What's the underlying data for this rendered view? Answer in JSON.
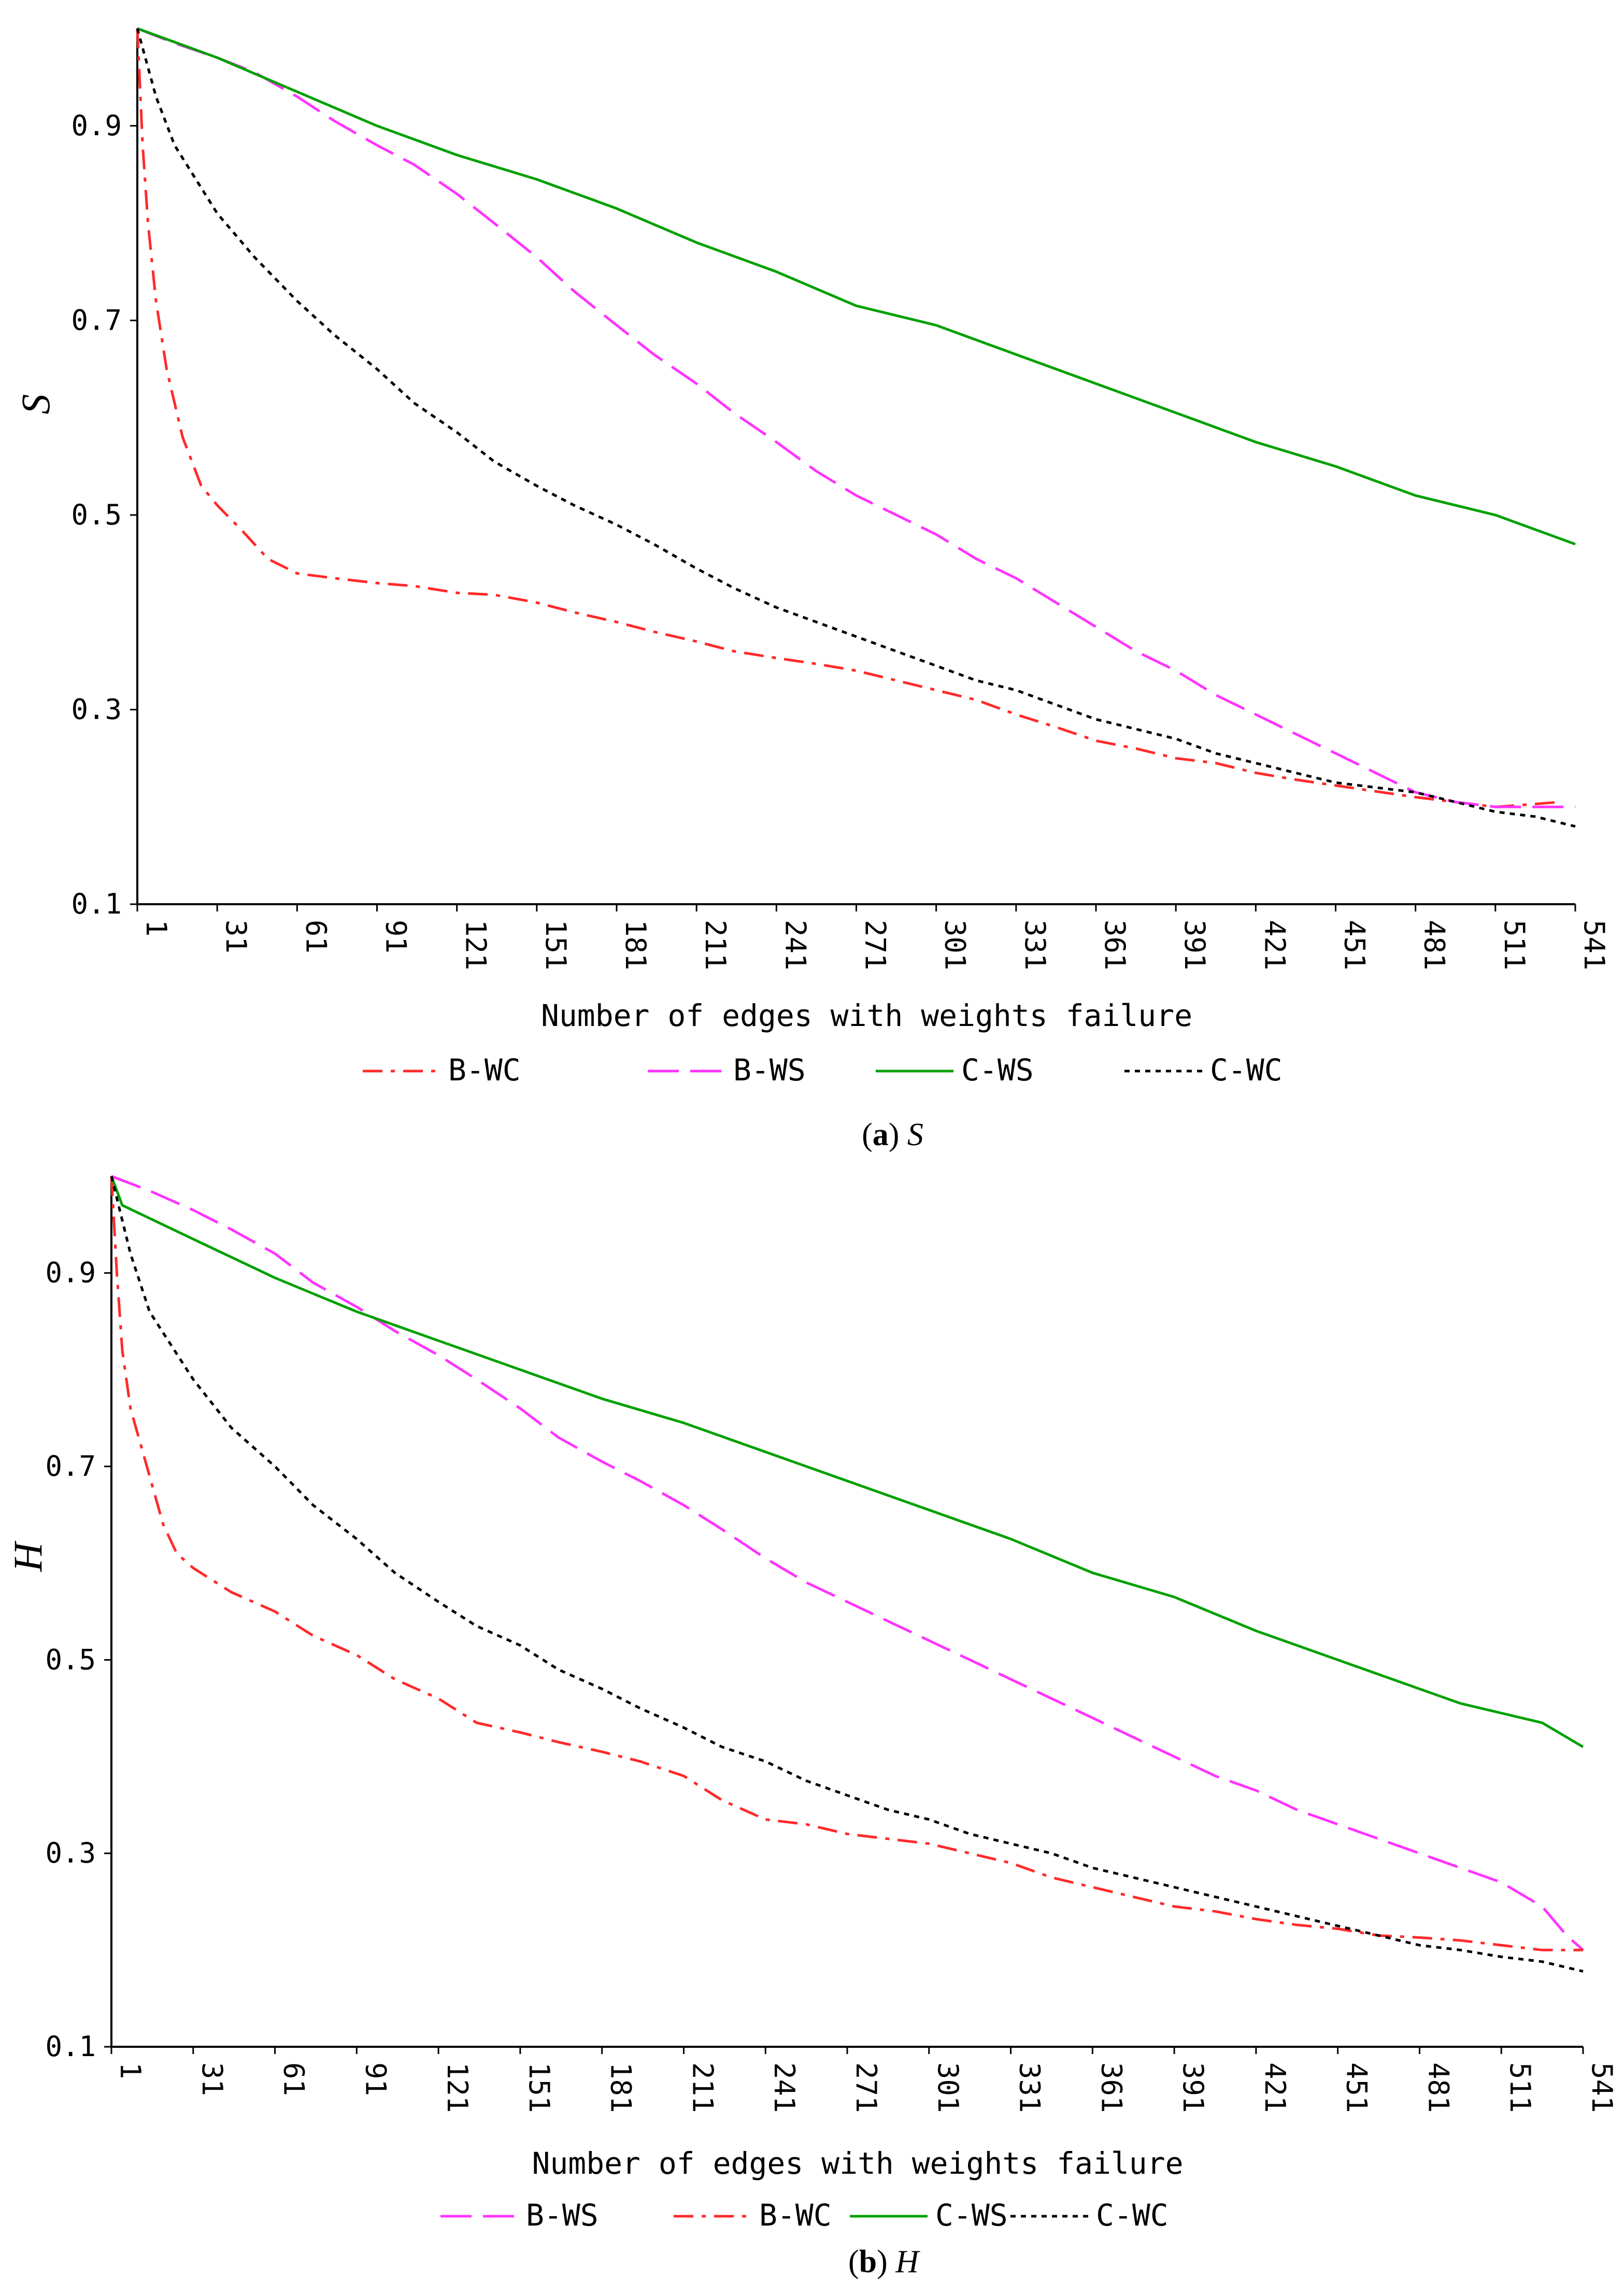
{
  "chart_data": [
    {
      "type": "line",
      "panel_letter": "a",
      "caption_var": "S",
      "ylabel": "S",
      "xlabel": "Number of edges with  weights failure",
      "xticks": [
        "1",
        "31",
        "61",
        "91",
        "121",
        "151",
        "181",
        "211",
        "241",
        "271",
        "301",
        "331",
        "361",
        "391",
        "421",
        "451",
        "481",
        "511",
        "541"
      ],
      "yticks": [
        "0.1",
        "0.3",
        "0.5",
        "0.7",
        "0.9"
      ],
      "xlim": [
        1,
        541
      ],
      "ylim": [
        0.1,
        1.0
      ],
      "grid": false,
      "legend_position": "bottom",
      "legend_order": [
        "B-WC",
        "B-WS",
        "C-WS",
        "C-WC"
      ],
      "series": [
        {
          "name": "B-WC",
          "color": "#ff2a2a",
          "dash": "dashdot",
          "x": [
            1,
            3,
            5,
            8,
            12,
            18,
            25,
            31,
            40,
            50,
            61,
            75,
            91,
            105,
            121,
            135,
            151,
            165,
            181,
            195,
            211,
            225,
            241,
            256,
            271,
            286,
            301,
            316,
            331,
            346,
            361,
            376,
            391,
            406,
            421,
            436,
            451,
            466,
            481,
            496,
            511,
            526,
            535
          ],
          "y": [
            1.0,
            0.88,
            0.8,
            0.72,
            0.65,
            0.58,
            0.53,
            0.51,
            0.485,
            0.455,
            0.44,
            0.435,
            0.43,
            0.427,
            0.42,
            0.418,
            0.41,
            0.4,
            0.39,
            0.38,
            0.37,
            0.36,
            0.353,
            0.347,
            0.34,
            0.33,
            0.32,
            0.31,
            0.295,
            0.282,
            0.268,
            0.26,
            0.25,
            0.245,
            0.235,
            0.228,
            0.222,
            0.216,
            0.21,
            0.205,
            0.2,
            0.203,
            0.205
          ]
        },
        {
          "name": "B-WS",
          "color": "#ff33ff",
          "dash": "longdash",
          "x": [
            1,
            15,
            31,
            45,
            61,
            75,
            91,
            105,
            121,
            135,
            151,
            165,
            181,
            195,
            211,
            225,
            241,
            256,
            271,
            286,
            301,
            316,
            331,
            346,
            361,
            376,
            391,
            406,
            421,
            436,
            451,
            466,
            481,
            496,
            511,
            526,
            541
          ],
          "y": [
            1.0,
            0.985,
            0.97,
            0.955,
            0.93,
            0.905,
            0.88,
            0.86,
            0.83,
            0.8,
            0.765,
            0.73,
            0.695,
            0.665,
            0.635,
            0.605,
            0.575,
            0.545,
            0.52,
            0.5,
            0.48,
            0.455,
            0.435,
            0.41,
            0.385,
            0.36,
            0.34,
            0.315,
            0.295,
            0.275,
            0.255,
            0.235,
            0.215,
            0.205,
            0.2,
            0.2,
            0.2
          ]
        },
        {
          "name": "C-WS",
          "color": "#00a000",
          "dash": "solid",
          "x": [
            1,
            31,
            61,
            91,
            121,
            151,
            171,
            181,
            211,
            241,
            271,
            301,
            331,
            361,
            391,
            421,
            451,
            481,
            511,
            541
          ],
          "y": [
            1.0,
            0.97,
            0.935,
            0.9,
            0.87,
            0.845,
            0.825,
            0.815,
            0.78,
            0.75,
            0.715,
            0.695,
            0.665,
            0.635,
            0.605,
            0.575,
            0.55,
            0.52,
            0.5,
            0.47
          ]
        },
        {
          "name": "C-WC",
          "color": "#000000",
          "dash": "dotted",
          "x": [
            1,
            8,
            15,
            31,
            45,
            61,
            75,
            91,
            105,
            121,
            135,
            151,
            165,
            181,
            195,
            211,
            225,
            241,
            256,
            271,
            286,
            301,
            316,
            331,
            346,
            361,
            376,
            391,
            406,
            421,
            436,
            451,
            466,
            481,
            496,
            511,
            526,
            541
          ],
          "y": [
            1.0,
            0.93,
            0.88,
            0.81,
            0.765,
            0.72,
            0.685,
            0.65,
            0.615,
            0.585,
            0.555,
            0.53,
            0.51,
            0.49,
            0.47,
            0.445,
            0.425,
            0.405,
            0.39,
            0.375,
            0.36,
            0.345,
            0.33,
            0.32,
            0.305,
            0.29,
            0.28,
            0.27,
            0.255,
            0.245,
            0.235,
            0.225,
            0.22,
            0.215,
            0.205,
            0.195,
            0.19,
            0.18
          ]
        }
      ]
    },
    {
      "type": "line",
      "panel_letter": "b",
      "caption_var": "H",
      "ylabel": "H",
      "xlabel": "Number of edges with  weights failure",
      "xticks": [
        "1",
        "31",
        "61",
        "91",
        "121",
        "151",
        "181",
        "211",
        "241",
        "271",
        "301",
        "331",
        "361",
        "391",
        "421",
        "451",
        "481",
        "511",
        "541"
      ],
      "yticks": [
        "0.1",
        "0.3",
        "0.5",
        "0.7",
        "0.9"
      ],
      "xlim": [
        1,
        541
      ],
      "ylim": [
        0.1,
        1.0
      ],
      "grid": false,
      "legend_position": "bottom",
      "legend_order": [
        "B-WS",
        "B-WC",
        "C-WS",
        "C-WC"
      ],
      "series": [
        {
          "name": "B-WS",
          "color": "#ff33ff",
          "dash": "longdash",
          "x": [
            1,
            15,
            31,
            45,
            61,
            75,
            91,
            105,
            121,
            135,
            151,
            165,
            181,
            195,
            211,
            225,
            241,
            256,
            271,
            286,
            301,
            316,
            331,
            346,
            361,
            376,
            391,
            406,
            421,
            436,
            451,
            466,
            481,
            496,
            511,
            526,
            535,
            541
          ],
          "y": [
            1.0,
            0.985,
            0.965,
            0.945,
            0.92,
            0.89,
            0.865,
            0.84,
            0.815,
            0.79,
            0.76,
            0.73,
            0.705,
            0.685,
            0.66,
            0.635,
            0.605,
            0.58,
            0.56,
            0.54,
            0.52,
            0.5,
            0.48,
            0.46,
            0.44,
            0.42,
            0.4,
            0.38,
            0.365,
            0.345,
            0.33,
            0.315,
            0.3,
            0.285,
            0.27,
            0.245,
            0.215,
            0.2
          ]
        },
        {
          "name": "B-WC",
          "color": "#ff2a2a",
          "dash": "dashdot",
          "x": [
            1,
            3,
            5,
            8,
            12,
            16,
            20,
            25,
            31,
            45,
            61,
            75,
            91,
            105,
            121,
            135,
            151,
            165,
            181,
            195,
            211,
            225,
            241,
            256,
            271,
            286,
            301,
            316,
            331,
            346,
            361,
            376,
            391,
            406,
            421,
            436,
            451,
            466,
            481,
            496,
            511,
            526,
            541
          ],
          "y": [
            1.0,
            0.9,
            0.82,
            0.76,
            0.72,
            0.68,
            0.64,
            0.61,
            0.595,
            0.57,
            0.55,
            0.525,
            0.505,
            0.48,
            0.46,
            0.435,
            0.425,
            0.415,
            0.405,
            0.395,
            0.38,
            0.355,
            0.335,
            0.33,
            0.32,
            0.315,
            0.31,
            0.3,
            0.29,
            0.275,
            0.265,
            0.255,
            0.245,
            0.24,
            0.232,
            0.226,
            0.222,
            0.215,
            0.213,
            0.21,
            0.205,
            0.2,
            0.2
          ]
        },
        {
          "name": "C-WS",
          "color": "#00a000",
          "dash": "solid",
          "x": [
            1,
            5,
            31,
            61,
            91,
            121,
            151,
            181,
            211,
            241,
            271,
            301,
            331,
            361,
            391,
            421,
            451,
            481,
            496,
            511,
            526,
            541
          ],
          "y": [
            1.0,
            0.97,
            0.935,
            0.895,
            0.86,
            0.83,
            0.8,
            0.77,
            0.745,
            0.715,
            0.685,
            0.655,
            0.625,
            0.59,
            0.565,
            0.53,
            0.5,
            0.47,
            0.455,
            0.445,
            0.435,
            0.41
          ]
        },
        {
          "name": "C-WC",
          "color": "#000000",
          "dash": "dotted",
          "x": [
            1,
            8,
            15,
            31,
            45,
            61,
            75,
            91,
            105,
            121,
            135,
            151,
            165,
            181,
            195,
            211,
            225,
            241,
            256,
            271,
            286,
            301,
            316,
            331,
            346,
            361,
            376,
            391,
            406,
            421,
            436,
            451,
            466,
            481,
            496,
            511,
            526,
            541
          ],
          "y": [
            1.0,
            0.92,
            0.86,
            0.79,
            0.74,
            0.7,
            0.66,
            0.625,
            0.59,
            0.56,
            0.535,
            0.515,
            0.49,
            0.47,
            0.45,
            0.43,
            0.41,
            0.395,
            0.375,
            0.36,
            0.345,
            0.335,
            0.32,
            0.31,
            0.3,
            0.285,
            0.275,
            0.265,
            0.255,
            0.245,
            0.235,
            0.225,
            0.215,
            0.205,
            0.2,
            0.193,
            0.188,
            0.178
          ]
        }
      ]
    }
  ]
}
